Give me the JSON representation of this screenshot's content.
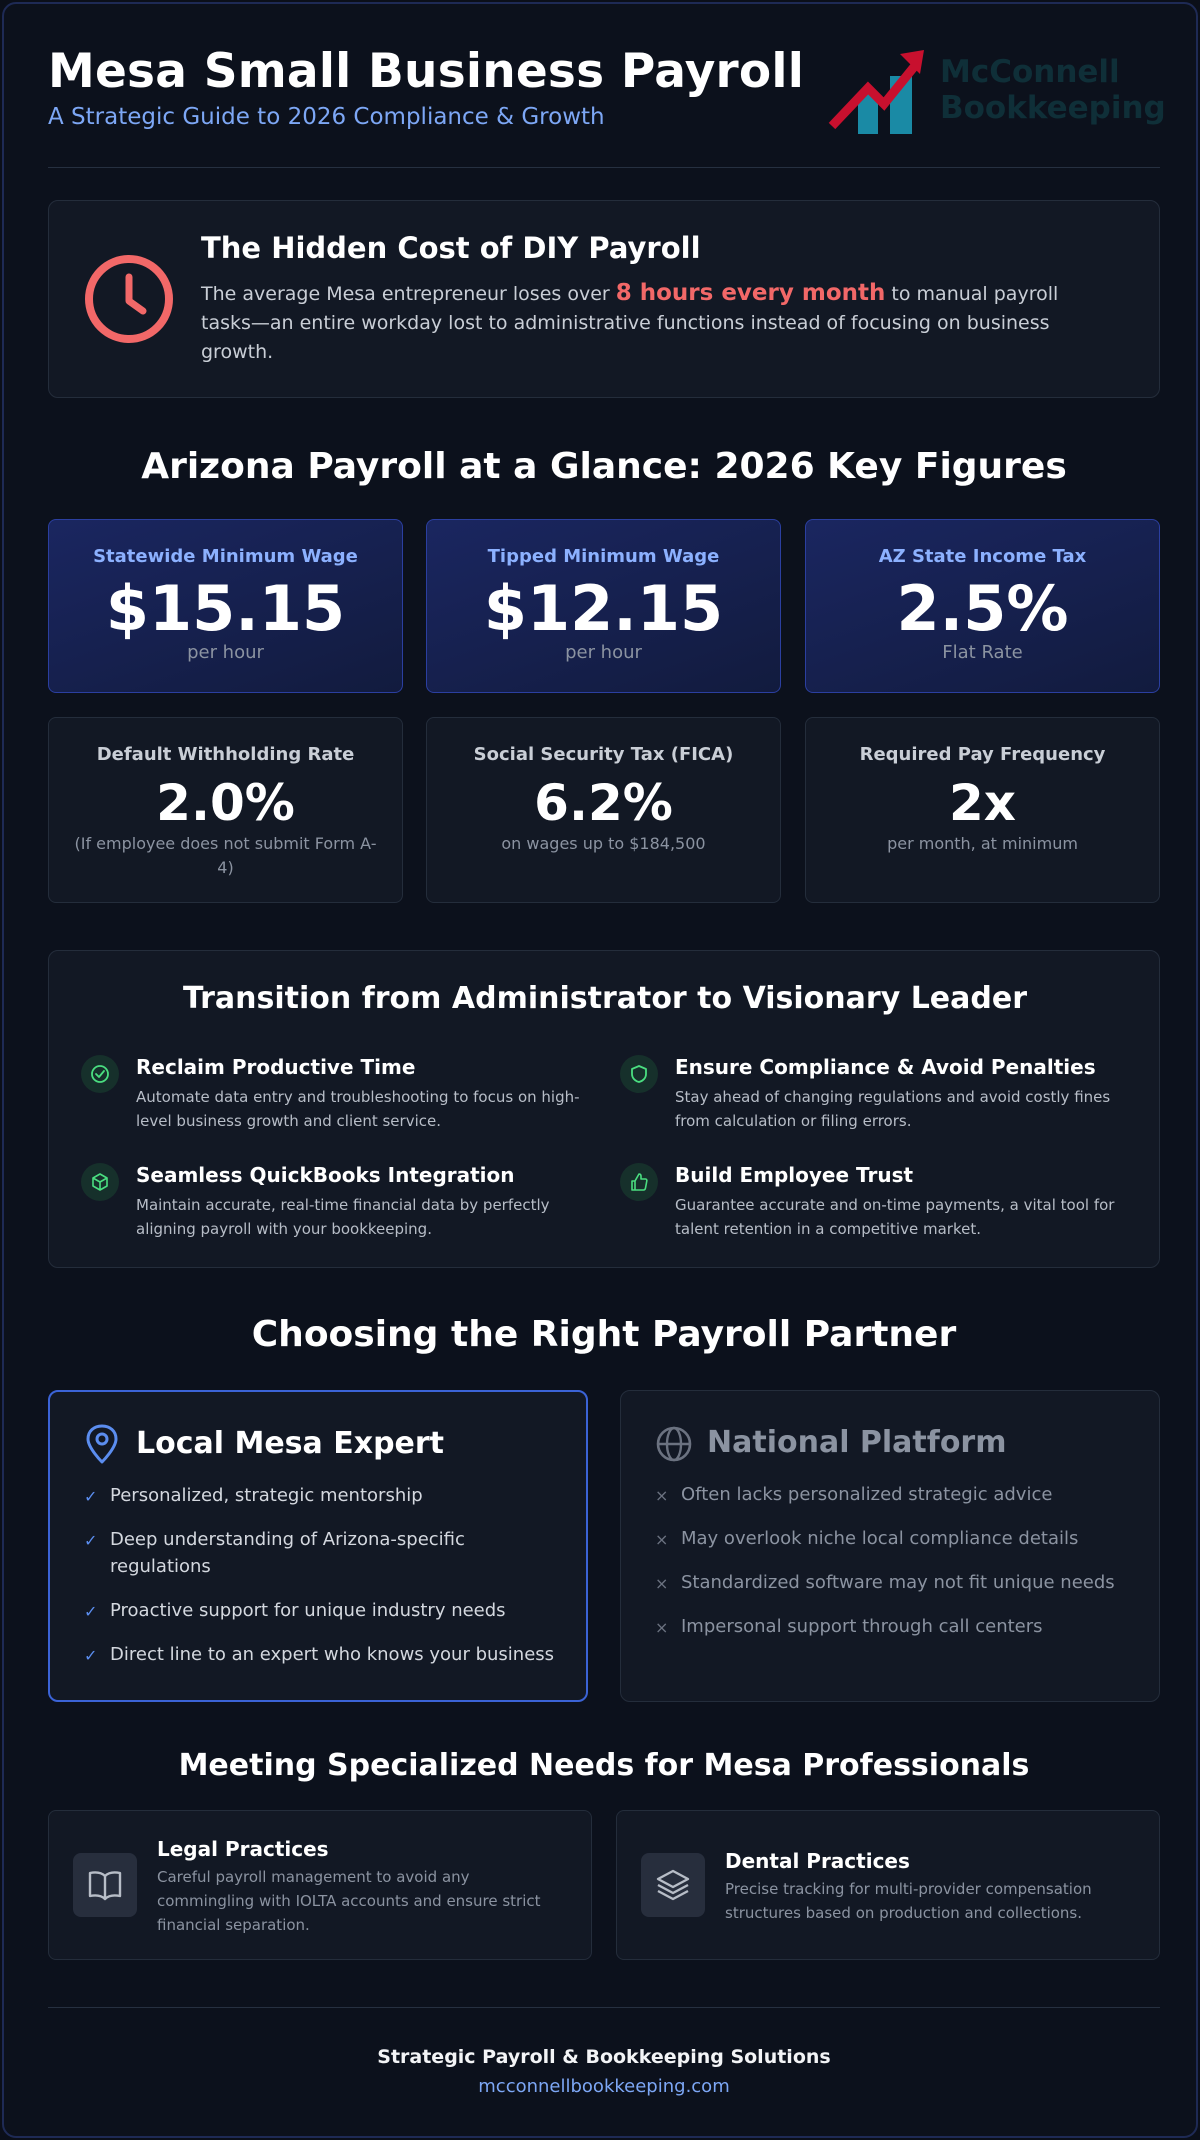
{
  "header": {
    "title": "Mesa Small Business Payroll",
    "subtitle": "A Strategic Guide to 2026 Compliance & Growth",
    "logo_text_line1": "McConnell",
    "logo_text_line2": "Bookkeeping",
    "logo_icon": "bar-chart-arrow-icon"
  },
  "hidden_cost": {
    "icon": "clock-icon",
    "title": "The Hidden Cost of DIY Payroll",
    "text_before": "The average Mesa entrepreneur loses over ",
    "highlight": "8 hours every month",
    "text_after": " to manual payroll tasks—an entire workday lost to administrative functions instead of focusing on business growth."
  },
  "key_figures": {
    "heading": "Arizona Payroll at a Glance: 2026 Key Figures",
    "primary": [
      {
        "label": "Statewide Minimum Wage",
        "value": "$15.15",
        "sub": "per hour"
      },
      {
        "label": "Tipped Minimum Wage",
        "value": "$12.15",
        "sub": "per hour"
      },
      {
        "label": "AZ State Income Tax",
        "value": "2.5%",
        "sub": "Flat Rate"
      }
    ],
    "secondary": [
      {
        "label": "Default Withholding Rate",
        "value": "2.0%",
        "sub": "(If employee does not submit Form A-4)"
      },
      {
        "label": "Social Security Tax (FICA)",
        "value": "6.2%",
        "sub": "on wages up to $184,500"
      },
      {
        "label": "Required Pay Frequency",
        "value": "2x",
        "sub": "per month, at minimum"
      }
    ]
  },
  "transition": {
    "heading": "Transition from Administrator to Visionary Leader",
    "items": [
      {
        "icon": "check-circle-icon",
        "title": "Reclaim Productive Time",
        "desc": "Automate data entry and troubleshooting to focus on high-level business growth and client service."
      },
      {
        "icon": "shield-icon",
        "title": "Ensure Compliance & Avoid Penalties",
        "desc": "Stay ahead of changing regulations and avoid costly fines from calculation or filing errors."
      },
      {
        "icon": "cube-icon",
        "title": "Seamless QuickBooks Integration",
        "desc": "Maintain accurate, real-time financial data by perfectly aligning payroll with your bookkeeping."
      },
      {
        "icon": "thumbs-up-icon",
        "title": "Build Employee Trust",
        "desc": "Guarantee accurate and on-time payments, a vital tool for talent retention in a competitive market."
      }
    ]
  },
  "partner": {
    "heading": "Choosing the Right Payroll Partner",
    "local": {
      "icon": "map-pin-icon",
      "title": "Local Mesa Expert",
      "mark": "✓",
      "items": [
        "Personalized, strategic mentorship",
        "Deep understanding of Arizona-specific regulations",
        "Proactive support for unique industry needs",
        "Direct line to an expert who knows your business"
      ]
    },
    "national": {
      "icon": "globe-icon",
      "title": "National Platform",
      "mark": "×",
      "items": [
        "Often lacks personalized strategic advice",
        "May overlook niche local compliance details",
        "Standardized software may not fit unique needs",
        "Impersonal support through call centers"
      ]
    }
  },
  "needs": {
    "heading": "Meeting Specialized Needs for Mesa Professionals",
    "items": [
      {
        "icon": "book-open-icon",
        "title": "Legal Practices",
        "desc": "Careful payroll management to avoid any commingling with IOLTA accounts and ensure strict financial separation."
      },
      {
        "icon": "layers-icon",
        "title": "Dental Practices",
        "desc": "Precise tracking for multi-provider compensation structures based on production and collections."
      }
    ]
  },
  "footer": {
    "name": "Strategic Payroll & Bookkeeping Solutions",
    "url": "mcconnellbookkeeping.com"
  },
  "colors": {
    "background": "#0c111c",
    "accent_blue": "#7da7f5",
    "highlight_red": "#f26868",
    "icon_green": "#4ade80",
    "logo_red": "#c8102e",
    "logo_teal": "#1a8aa5"
  }
}
